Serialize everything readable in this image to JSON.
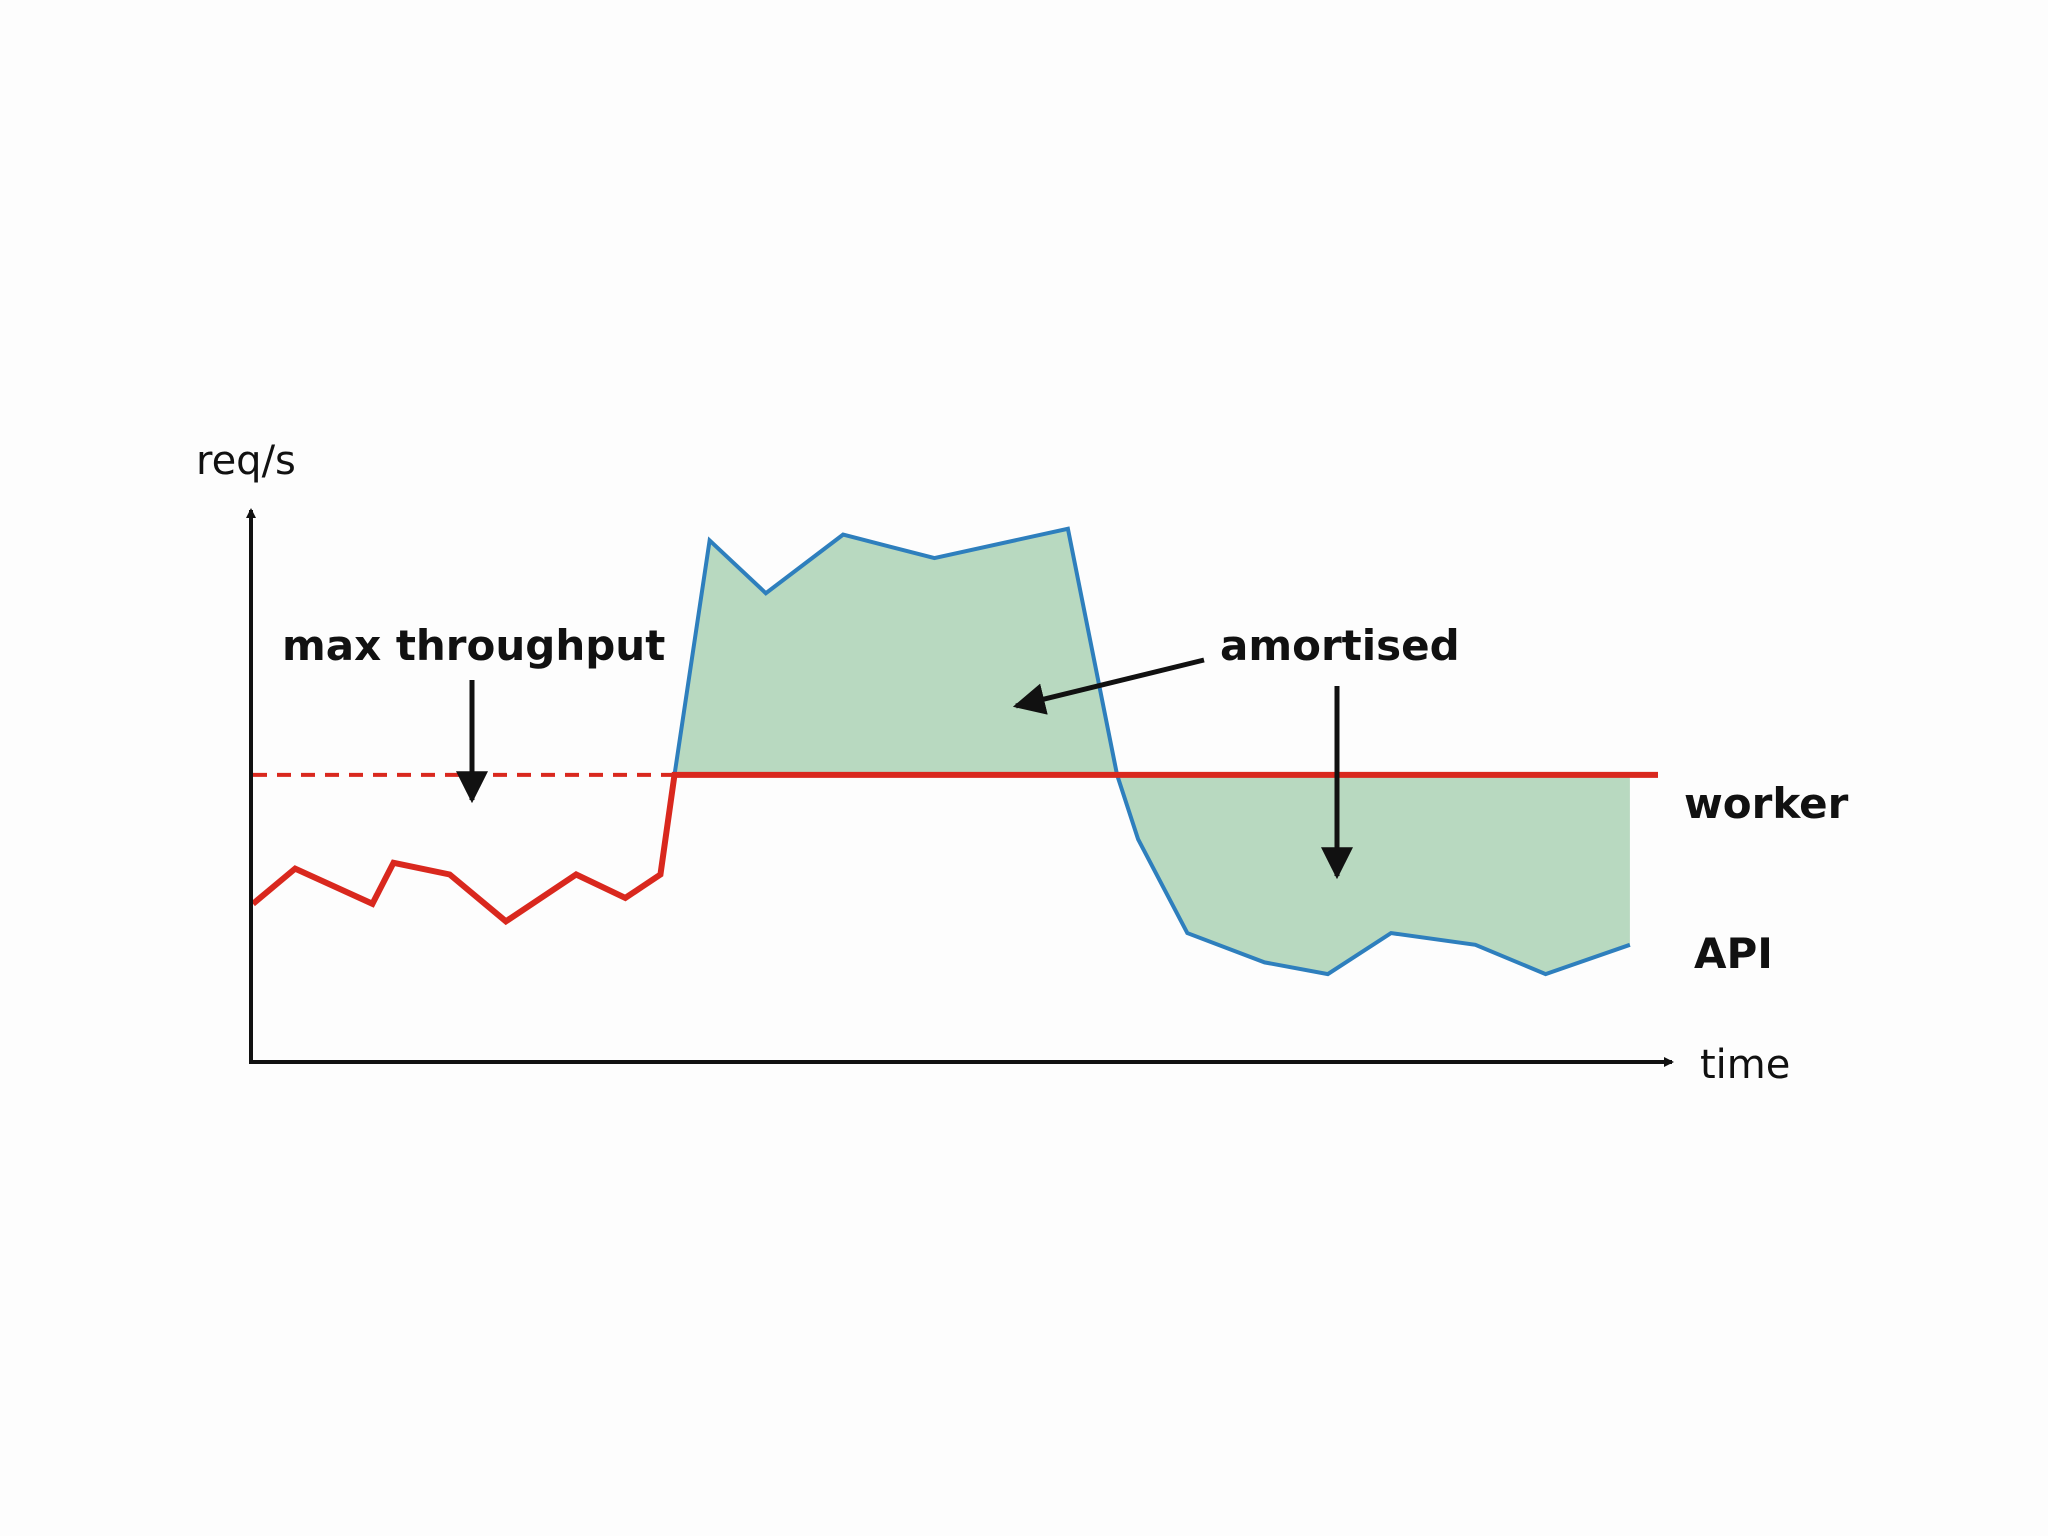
{
  "chart_data": {
    "type": "line",
    "title": "",
    "ylabel": "req/s",
    "xlabel": "time",
    "xlim": [
      0,
      100
    ],
    "ylim": [
      0,
      100
    ],
    "grid": false,
    "legend": "none",
    "series": [
      {
        "name": "worker",
        "label": "worker",
        "color": "#d9281e",
        "x": [
          0,
          3,
          8.5,
          10,
          14,
          18,
          23,
          26.5,
          29,
          30,
          100
        ],
        "y": [
          27,
          33,
          27,
          34,
          32,
          24,
          32,
          28,
          32,
          49,
          49
        ]
      },
      {
        "name": "API",
        "label": "API",
        "color": "#2e7fbd",
        "fill": "#b8d9c0",
        "x": [
          30,
          32.5,
          36.5,
          42,
          48.5,
          58,
          61.5,
          63,
          66.5,
          72,
          76.5,
          81,
          87,
          92,
          98
        ],
        "y": [
          49,
          89,
          80,
          90,
          86,
          91,
          49,
          38,
          22,
          17,
          15,
          22,
          20,
          15,
          20
        ]
      }
    ],
    "reference_lines": [
      {
        "label": "max throughput",
        "y": 49,
        "x": [
          0,
          30
        ],
        "style": "dashed",
        "color": "#d9281e"
      }
    ],
    "annotations": [
      {
        "text": "max throughput"
      },
      {
        "text": "amortised"
      }
    ]
  }
}
